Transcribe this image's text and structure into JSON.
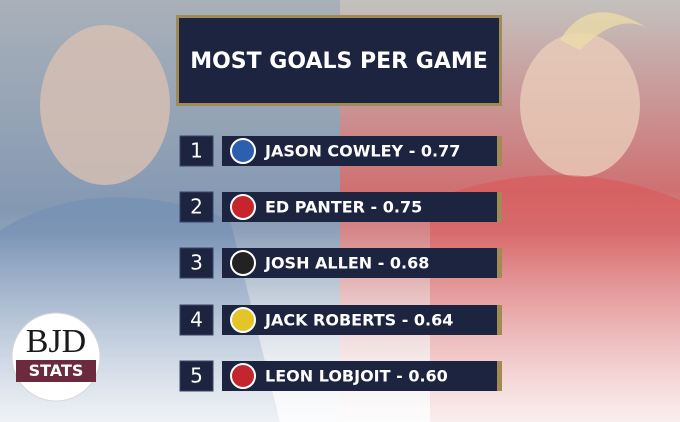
{
  "title": "MOST GOALS PER GAME",
  "rows": [
    {
      "rank": "1",
      "label": "JASON COWLEY - 0.77"
    },
    {
      "rank": "2",
      "label": "ED PANTER - 0.75"
    },
    {
      "rank": "3",
      "label": "JOSH ALLEN - 0.68"
    },
    {
      "rank": "4",
      "label": "JACK ROBERTS - 0.64"
    },
    {
      "rank": "5",
      "label": "LEON LOBJOIT - 0.60"
    }
  ],
  "logo": {
    "top": "BJD",
    "bottom": "STATS"
  }
}
